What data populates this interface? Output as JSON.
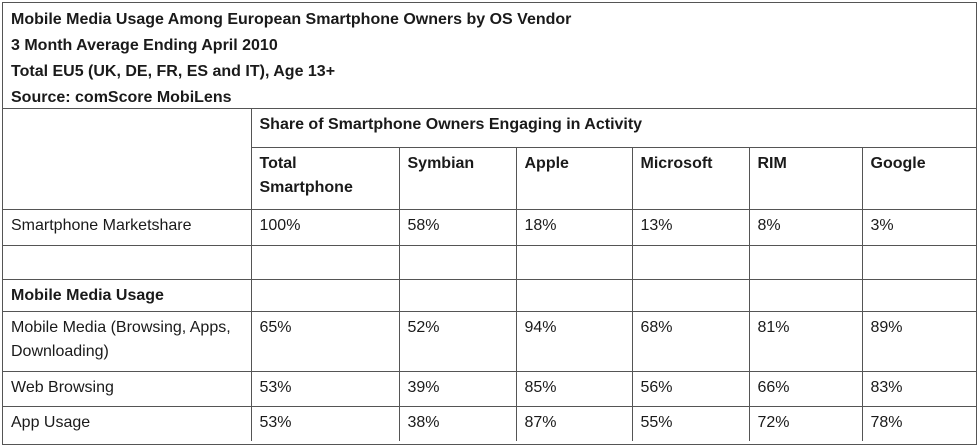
{
  "header": {
    "lines": [
      "Mobile Media Usage Among European Smartphone Owners by OS Vendor",
      "3 Month Average Ending April 2010",
      "Total EU5 (UK, DE, FR, ES and IT), Age 13+",
      "Source: comScore MobiLens"
    ]
  },
  "table": {
    "group_header": "Share of Smartphone Owners Engaging in Activity",
    "columns": [
      "Total Smartphone",
      "Symbian",
      "Apple",
      "Microsoft",
      "RIM",
      "Google"
    ],
    "marketshare": {
      "label": "Smartphone Marketshare",
      "values": [
        "100%",
        "58%",
        "18%",
        "13%",
        "8%",
        "3%"
      ]
    },
    "section_label": "Mobile Media Usage",
    "rows": [
      {
        "label": "Mobile Media (Browsing, Apps, Downloading)",
        "values": [
          "65%",
          "52%",
          "94%",
          "68%",
          "81%",
          "89%"
        ]
      },
      {
        "label": "Web Browsing",
        "values": [
          "53%",
          "39%",
          "85%",
          "56%",
          "66%",
          "83%"
        ]
      },
      {
        "label": "App Usage",
        "values": [
          "53%",
          "38%",
          "87%",
          "55%",
          "72%",
          "78%"
        ]
      }
    ]
  }
}
